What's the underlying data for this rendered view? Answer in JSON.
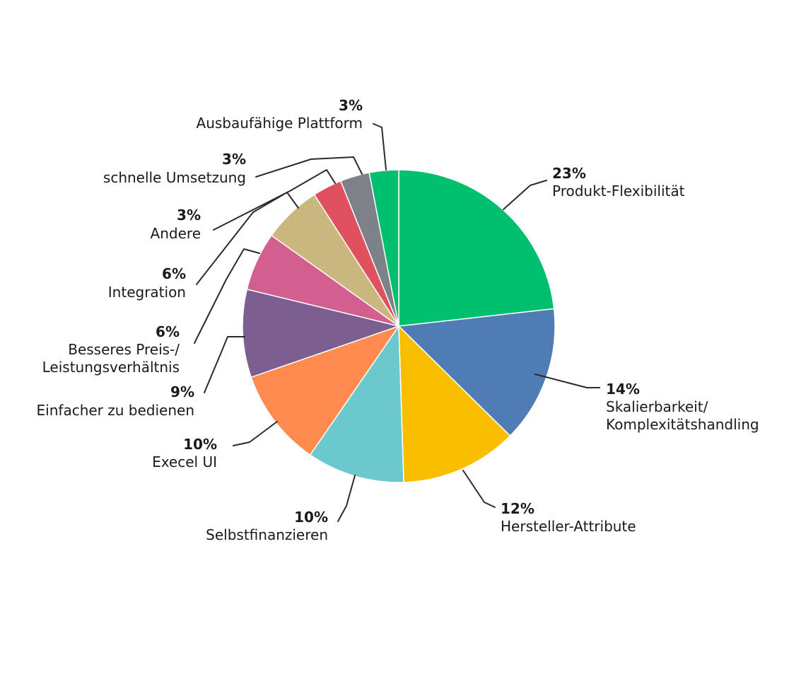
{
  "chart_data": {
    "type": "pie",
    "title": "",
    "unit": "%",
    "slices": [
      {
        "label": "Produkt-Flexibilität",
        "value": 23,
        "display": "23%",
        "color": "#00BF6F"
      },
      {
        "label": "Skalierbarkeit/ Komplexitätshandling",
        "value": 14,
        "display": "14%",
        "color": "#507CB6"
      },
      {
        "label": "Hersteller-Attribute",
        "value": 12,
        "display": "12%",
        "color": "#F9BE00"
      },
      {
        "label": "Selbstfinanzieren",
        "value": 10,
        "display": "10%",
        "color": "#6BC8CD"
      },
      {
        "label": "Execel UI",
        "value": 10,
        "display": "10%",
        "color": "#FF8B4F"
      },
      {
        "label": "Einfacher zu bedienen",
        "value": 9,
        "display": "9%",
        "color": "#7D5E90"
      },
      {
        "label": "Besseres Preis-/ Leistungsverhältnis",
        "value": 6,
        "display": "6%",
        "color": "#D25F90"
      },
      {
        "label": "Integration",
        "value": 6,
        "display": "6%",
        "color": "#C9B77D"
      },
      {
        "label": "Andere",
        "value": 3,
        "display": "3%",
        "color": "#E0515F"
      },
      {
        "label": "schnelle Umsetzung",
        "value": 3,
        "display": "3%",
        "color": "#7D8189"
      },
      {
        "label": "Ausbaufähige Plattform",
        "value": 3,
        "display": "3%",
        "color": "#00BF6F"
      }
    ]
  }
}
